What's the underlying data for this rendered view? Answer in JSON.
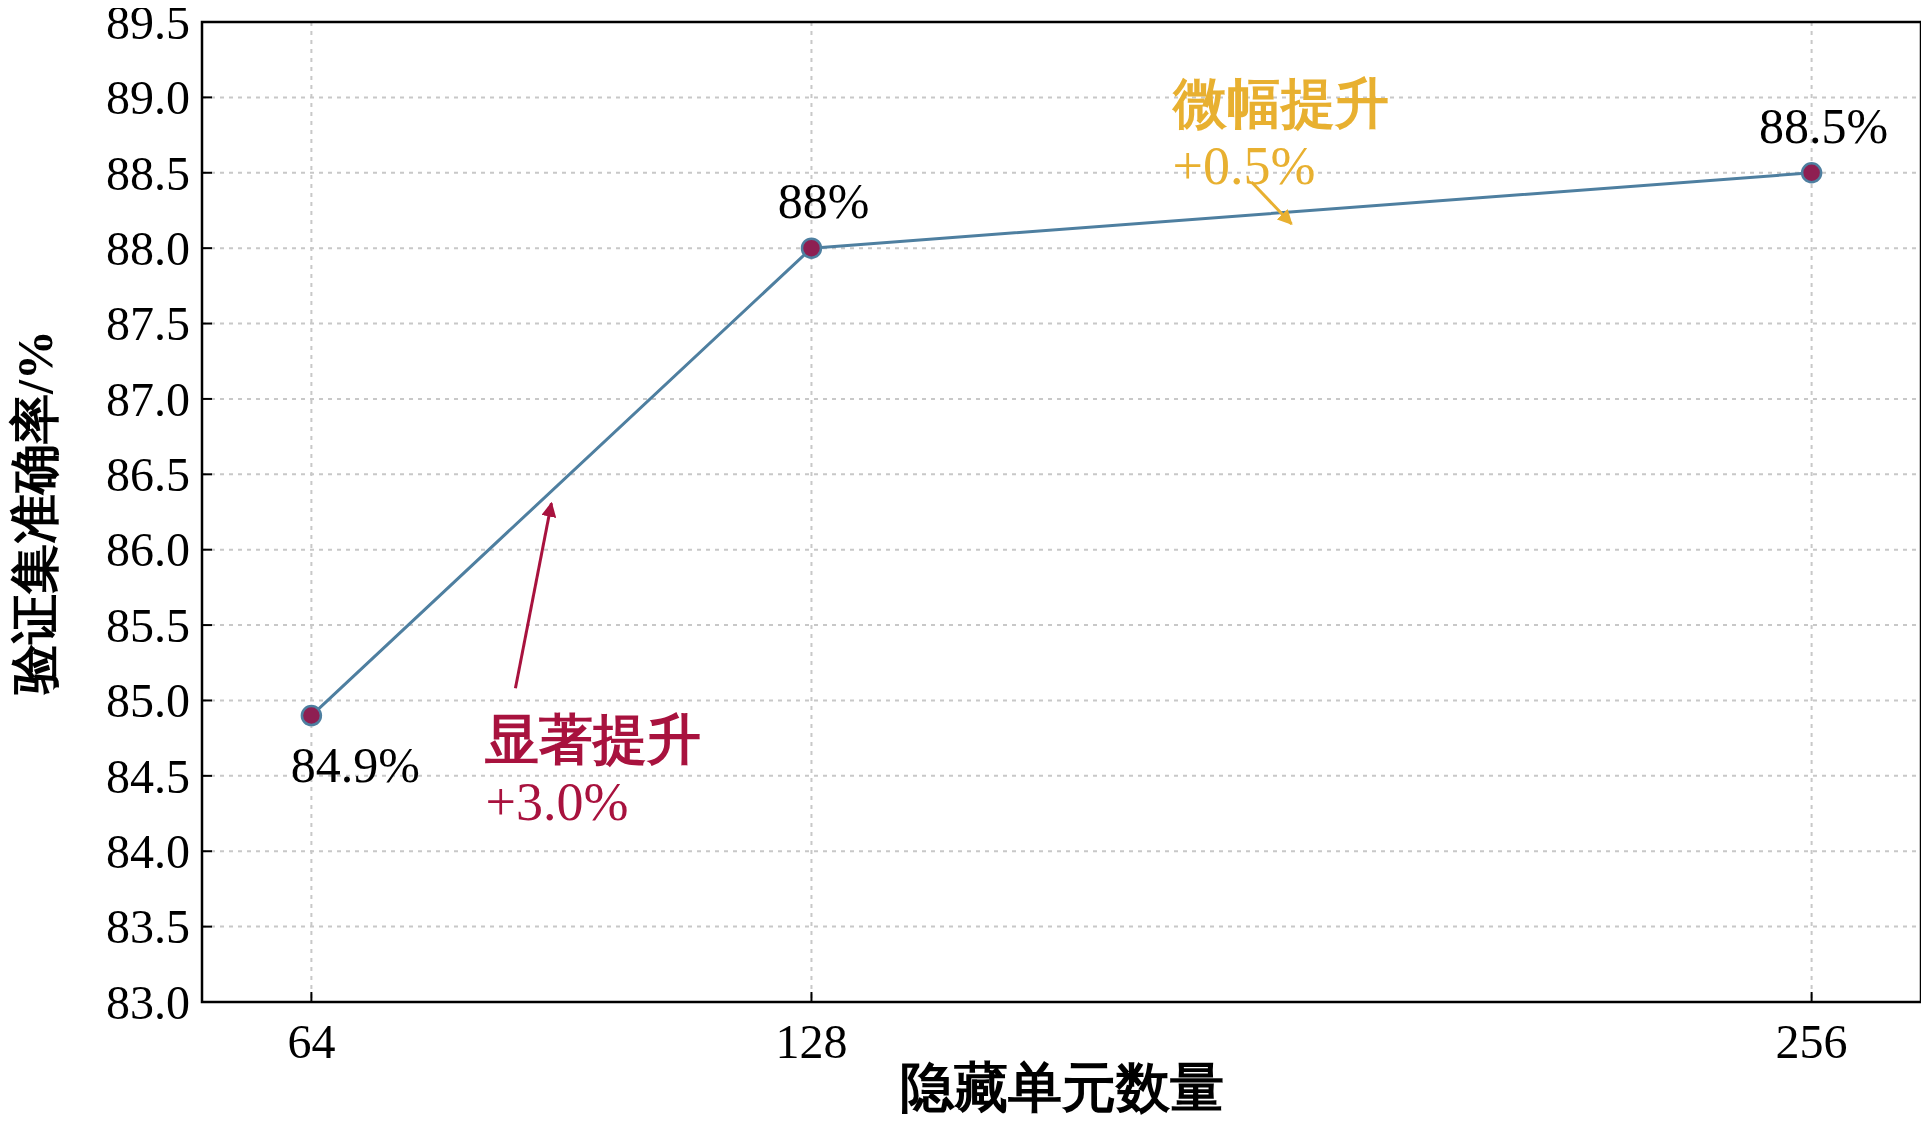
{
  "chart_data": {
    "type": "line",
    "xlabel": "隐藏单元数量",
    "ylabel": "验证集准确率/%",
    "x": [
      64,
      128,
      256
    ],
    "series": [
      {
        "color": "#4e7fa0",
        "values": [
          84.9,
          88.0,
          88.5
        ],
        "value_labels": [
          "84.9%",
          "88%",
          "88.5%"
        ]
      }
    ],
    "xlim": [
      50,
      270
    ],
    "xticks": [
      64,
      128,
      256
    ],
    "ylim": [
      83,
      89.5
    ],
    "yticks": [
      {
        "value": 83,
        "label": "83.0"
      },
      {
        "value": 83.5,
        "label": "83.5"
      },
      {
        "value": 84,
        "label": "84.0"
      },
      {
        "value": 84.5,
        "label": "84.5"
      },
      {
        "value": 85,
        "label": "85.0"
      },
      {
        "value": 85.5,
        "label": "85.5"
      },
      {
        "value": 86,
        "label": "86.0"
      },
      {
        "value": 86.5,
        "label": "86.5"
      },
      {
        "value": 87,
        "label": "87.0"
      },
      {
        "value": 87.5,
        "label": "87.5"
      },
      {
        "value": 88,
        "label": "88.0"
      },
      {
        "value": 88.5,
        "label": "88.5"
      },
      {
        "value": 89,
        "label": "89.0"
      },
      {
        "value": 89.5,
        "label": "89.5"
      }
    ],
    "grid": true,
    "marker": "circle",
    "line_style": "solid",
    "annotations": [
      "显著提升\n+3.0%",
      "微幅提升\n+0.5%"
    ]
  }
}
